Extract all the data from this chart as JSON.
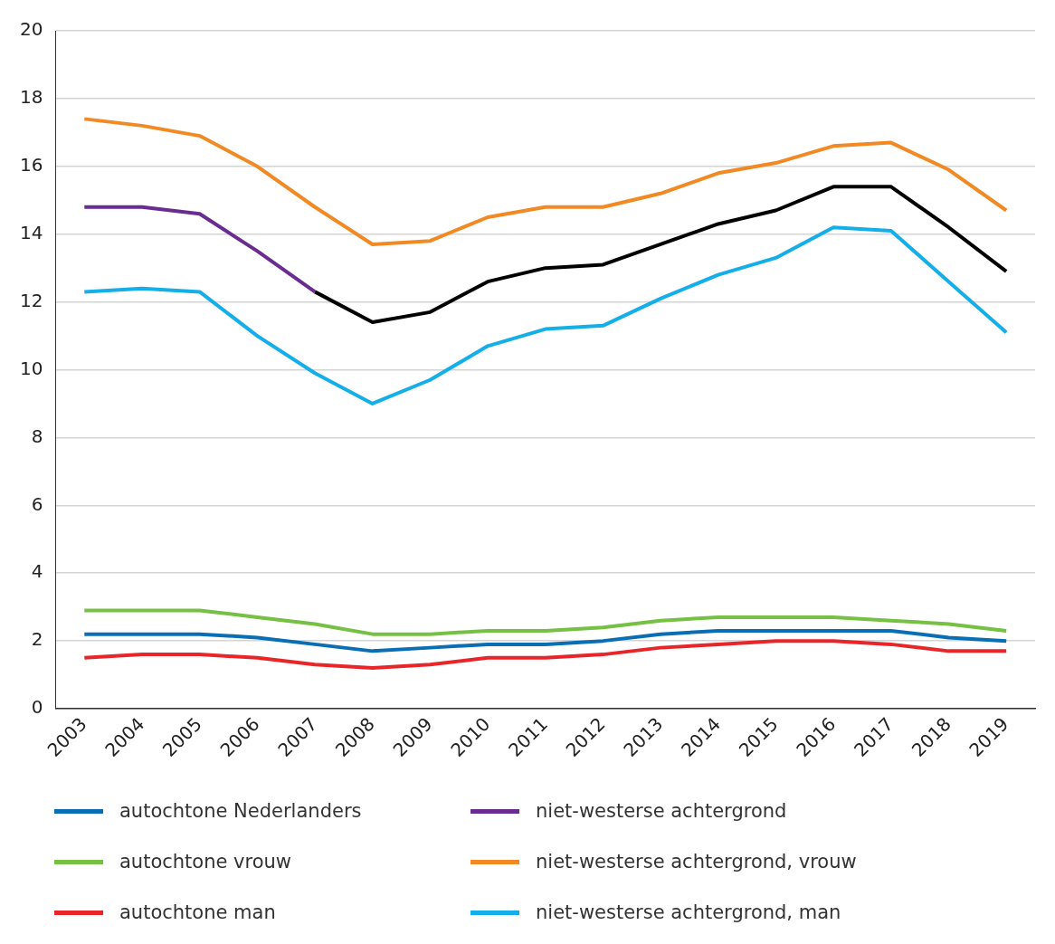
{
  "chart_data": {
    "type": "line",
    "categories": [
      "2003",
      "2004",
      "2005",
      "2006",
      "2007",
      "2008",
      "2009",
      "2010",
      "2011",
      "2012",
      "2013",
      "2014",
      "2015",
      "2016",
      "2017",
      "2018",
      "2019"
    ],
    "series": [
      {
        "name": "autochtone Nederlanders",
        "color": "#0a6eb4",
        "values": [
          2.2,
          2.2,
          2.2,
          2.1,
          1.9,
          1.7,
          1.8,
          1.9,
          1.9,
          2.0,
          2.2,
          2.3,
          2.3,
          2.3,
          2.3,
          2.1,
          2.0
        ]
      },
      {
        "name": "autochtone vrouw",
        "color": "#76c043",
        "values": [
          2.9,
          2.9,
          2.9,
          2.7,
          2.5,
          2.2,
          2.2,
          2.3,
          2.3,
          2.4,
          2.6,
          2.7,
          2.7,
          2.7,
          2.6,
          2.5,
          2.3
        ]
      },
      {
        "name": "autochtone man",
        "color": "#e8262a",
        "values": [
          1.5,
          1.6,
          1.6,
          1.5,
          1.3,
          1.2,
          1.3,
          1.5,
          1.5,
          1.6,
          1.8,
          1.9,
          2.0,
          2.0,
          1.9,
          1.7,
          1.7
        ]
      },
      {
        "name": "niet-westerse achtergrond",
        "color": "#6a2c91",
        "values": [
          14.8,
          14.8,
          14.6,
          13.5,
          12.3,
          null,
          null,
          null,
          null,
          null,
          null,
          null,
          null,
          null,
          null,
          null,
          null
        ]
      },
      {
        "name": "niet-westerse achtergrond, vrouw",
        "color": "#f18a24",
        "values": [
          17.4,
          17.2,
          16.9,
          16.0,
          14.8,
          13.7,
          13.8,
          14.5,
          14.8,
          14.8,
          15.2,
          15.8,
          16.1,
          16.6,
          16.7,
          15.9,
          14.7
        ]
      },
      {
        "name": "niet-westerse achtergrond, man",
        "color": "#14aee8",
        "values": [
          12.3,
          12.4,
          12.3,
          11.0,
          9.9,
          9.0,
          9.7,
          10.7,
          11.2,
          11.3,
          12.1,
          12.8,
          13.3,
          14.2,
          14.1,
          12.6,
          11.1
        ]
      },
      {
        "color": "#000000",
        "values": [
          null,
          null,
          null,
          null,
          12.3,
          11.4,
          11.7,
          12.6,
          13.0,
          13.1,
          13.7,
          14.3,
          14.7,
          15.4,
          15.4,
          14.2,
          12.9
        ]
      }
    ],
    "ylim": [
      0,
      20
    ],
    "yticks": [
      0,
      2,
      4,
      6,
      8,
      10,
      12,
      14,
      16,
      18,
      20
    ],
    "grid": "y",
    "legend": "bottom",
    "marker": "none",
    "line_style": "solid"
  }
}
